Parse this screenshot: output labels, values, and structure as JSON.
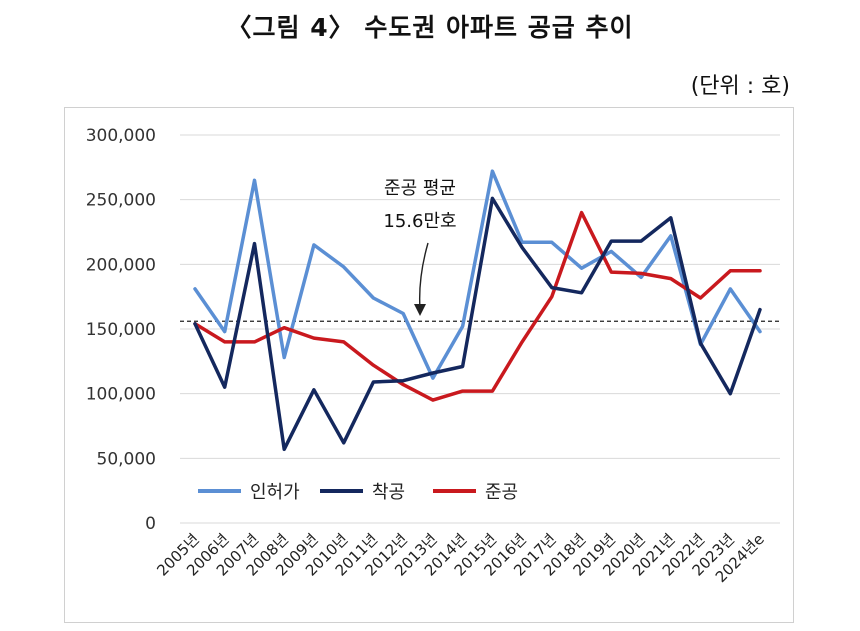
{
  "page_title": "〈그림 4〉 수도권 아파트 공급 추이",
  "unit_label": "(단위 : 호)",
  "chart_data": {
    "type": "line",
    "title": "〈그림 4〉 수도권 아파트 공급 추이",
    "categories": [
      "2005년",
      "2006년",
      "2007년",
      "2008년",
      "2009년",
      "2010년",
      "2011년",
      "2012년",
      "2013년",
      "2014년",
      "2015년",
      "2016년",
      "2017년",
      "2018년",
      "2019년",
      "2020년",
      "2021년",
      "2022년",
      "2023년",
      "2024년e"
    ],
    "series": [
      {
        "name": "인허가",
        "color": "#5b8fd4",
        "values": [
          181000,
          148000,
          265000,
          128000,
          215000,
          198000,
          174000,
          162000,
          112000,
          152000,
          272000,
          217000,
          217000,
          197000,
          210000,
          190000,
          222000,
          138000,
          181000,
          148000
        ]
      },
      {
        "name": "착공",
        "color": "#14285e",
        "values": [
          154000,
          105000,
          216000,
          57000,
          103000,
          62000,
          109000,
          110000,
          116000,
          121000,
          251000,
          213000,
          182000,
          178000,
          218000,
          218000,
          236000,
          139000,
          100000,
          165000
        ]
      },
      {
        "name": "준공",
        "color": "#c9191e",
        "values": [
          154000,
          140000,
          140000,
          151000,
          143000,
          140000,
          122000,
          107000,
          95000,
          102000,
          102000,
          140000,
          175000,
          240000,
          194000,
          193000,
          189000,
          174000,
          195000,
          195000
        ]
      }
    ],
    "reference_line": {
      "value": 156000,
      "label_line1": "준공 평균",
      "label_line2": "15.6만호"
    },
    "y_ticks": [
      0,
      50000,
      100000,
      150000,
      200000,
      250000,
      300000
    ],
    "y_tick_labels": [
      "0",
      "50,000",
      "100,000",
      "150,000",
      "200,000",
      "250,000",
      "300,000"
    ],
    "ylim": [
      0,
      300000
    ],
    "legend_position": "bottom-left"
  }
}
